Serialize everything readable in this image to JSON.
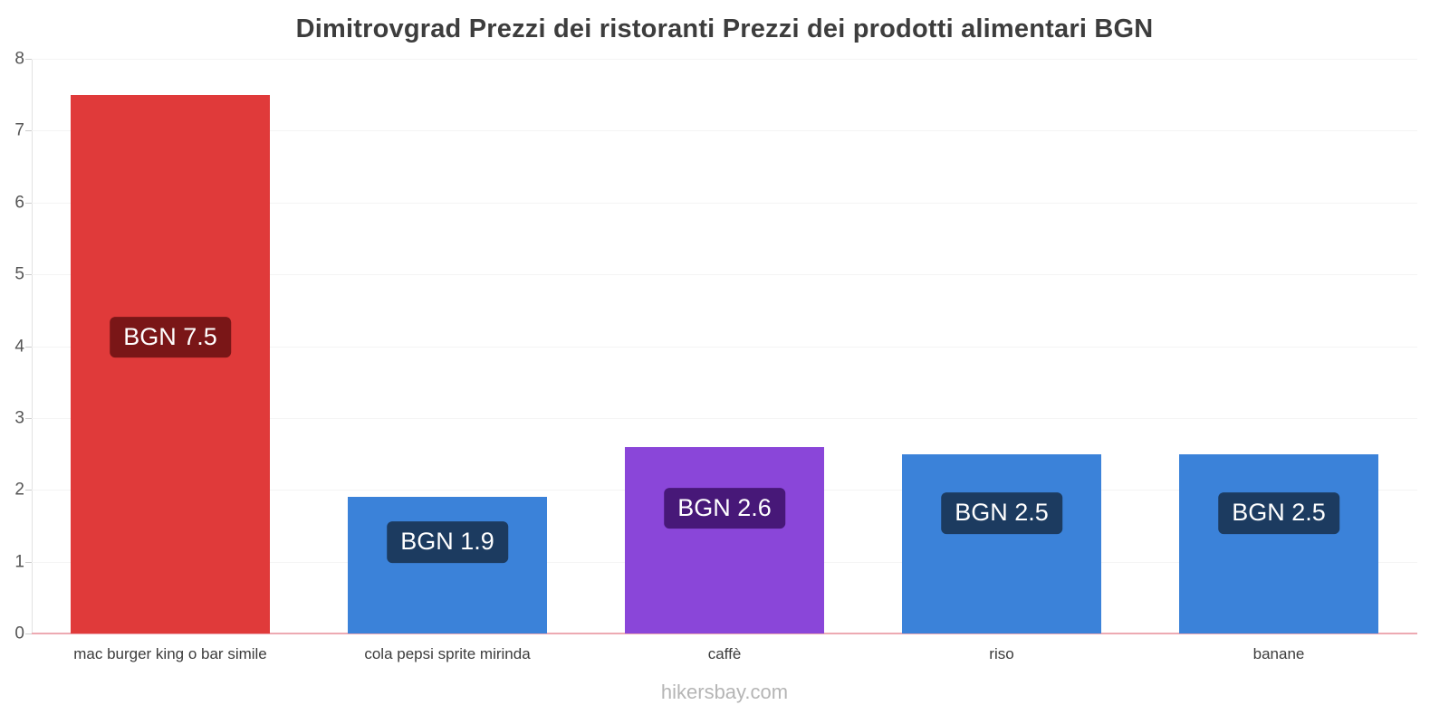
{
  "chart_data": {
    "type": "bar",
    "title": "Dimitrovgrad Prezzi dei ristoranti Prezzi dei prodotti alimentari BGN",
    "categories": [
      "mac burger king o bar simile",
      "cola pepsi sprite mirinda",
      "caffè",
      "riso",
      "banane"
    ],
    "values": [
      7.5,
      1.9,
      2.6,
      2.5,
      2.5
    ],
    "bar_labels": [
      "BGN 7.5",
      "BGN 1.9",
      "BGN 2.6",
      "BGN 2.5",
      "BGN 2.5"
    ],
    "bar_colors": [
      "#e03a3a",
      "#3b82d9",
      "#8a46d9",
      "#3b82d9",
      "#3b82d9"
    ],
    "label_bg_colors": [
      "#7a1617",
      "#1c3b60",
      "#471878",
      "#1c3b60",
      "#1c3b60"
    ],
    "currency": "BGN",
    "ylim": [
      0,
      8
    ],
    "yticks": [
      0,
      1,
      2,
      3,
      4,
      5,
      6,
      7,
      8
    ],
    "grid": true,
    "legend": false,
    "xlabel": "",
    "ylabel": ""
  },
  "footer": {
    "text": "hikersbay.com"
  }
}
